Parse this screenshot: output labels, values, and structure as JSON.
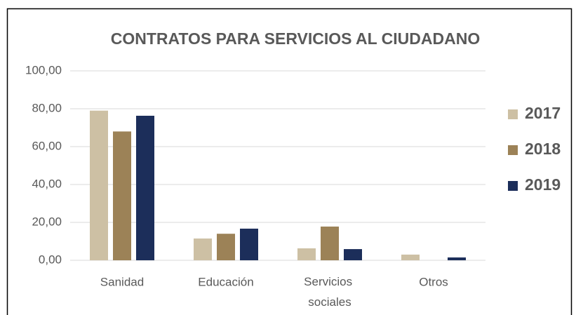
{
  "chart_data": {
    "type": "bar",
    "title": "CONTRATOS PARA SERVICIOS AL CIUDADANO",
    "categories": [
      "Sanidad",
      "Educación",
      "Servicios sociales",
      "Otros"
    ],
    "series": [
      {
        "name": "2017",
        "color": "#cdc0a4",
        "values": [
          79,
          11.5,
          6.3,
          3
        ]
      },
      {
        "name": "2018",
        "color": "#9c8257",
        "values": [
          68,
          14,
          17.8,
          0
        ]
      },
      {
        "name": "2019",
        "color": "#1c2e5a",
        "values": [
          76.3,
          16.7,
          5.9,
          1.5
        ]
      }
    ],
    "ylim": [
      0,
      100
    ],
    "yticks": [
      {
        "value": 0,
        "label": "0,00"
      },
      {
        "value": 20,
        "label": "20,00"
      },
      {
        "value": 40,
        "label": "40,00"
      },
      {
        "value": 60,
        "label": "60,00"
      },
      {
        "value": 80,
        "label": "80,00"
      },
      {
        "value": 100,
        "label": "100,00"
      }
    ],
    "grid": true,
    "legend": "right"
  }
}
